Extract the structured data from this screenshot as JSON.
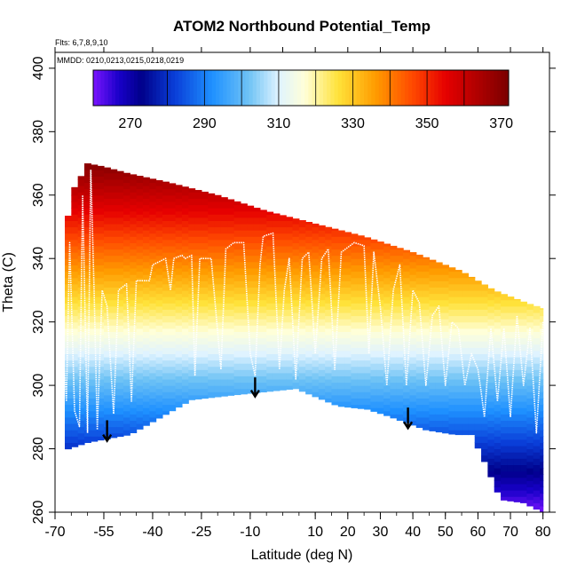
{
  "chart_data": {
    "type": "heatmap",
    "title": "ATOM2 Northbound Potential_Temp",
    "xlabel": "Latitude (deg N)",
    "ylabel": "Theta (C)",
    "flights_note": "Flts: 6,7,8,9,10",
    "dates_note": "MMDD: 0210,0213,0215,0218,0219",
    "xlim": [
      -70,
      82
    ],
    "ylim": [
      260,
      405
    ],
    "x_ticks": [
      -70,
      -55,
      -40,
      -25,
      -10,
      10,
      20,
      30,
      40,
      50,
      60,
      70,
      80
    ],
    "x_ticks_top": [
      -70,
      -55,
      -40,
      -25,
      -10,
      0,
      10,
      20,
      30,
      40,
      50,
      60,
      70,
      80
    ],
    "x_tick_labels": [
      "-70",
      "-55",
      "-40",
      "-25",
      "-10",
      "10",
      "20",
      "30",
      "40",
      "50",
      "60",
      "70",
      "80"
    ],
    "y_ticks": [
      260,
      280,
      300,
      320,
      340,
      360,
      380,
      400
    ],
    "y_tick_labels": [
      "260",
      "280",
      "300",
      "320",
      "340",
      "360",
      "380",
      "400"
    ],
    "colorbar": {
      "min": 260,
      "max": 372,
      "tick_values": [
        270,
        290,
        310,
        330,
        350,
        370
      ],
      "tick_labels": [
        "270",
        "290",
        "310",
        "330",
        "350",
        "370"
      ],
      "stops": [
        {
          "v": 260,
          "color": "#7a14ff"
        },
        {
          "v": 267,
          "color": "#1800c8"
        },
        {
          "v": 273,
          "color": "#00008a"
        },
        {
          "v": 282,
          "color": "#0a3ed8"
        },
        {
          "v": 292,
          "color": "#1e90ff"
        },
        {
          "v": 302,
          "color": "#6fc3f5"
        },
        {
          "v": 310,
          "color": "#dff3ff"
        },
        {
          "v": 317,
          "color": "#ffffd8"
        },
        {
          "v": 326,
          "color": "#ffe23a"
        },
        {
          "v": 336,
          "color": "#ff9c00"
        },
        {
          "v": 346,
          "color": "#ff4a00"
        },
        {
          "v": 355,
          "color": "#e60000"
        },
        {
          "v": 372,
          "color": "#7a0000"
        }
      ]
    },
    "theta_bottom_profile": [
      {
        "lat": -68,
        "theta": 277
      },
      {
        "lat": -66,
        "theta": 280
      },
      {
        "lat": -60,
        "theta": 282
      },
      {
        "lat": -55,
        "theta": 283
      },
      {
        "lat": -47,
        "theta": 284.5
      },
      {
        "lat": -28,
        "theta": 295.5
      },
      {
        "lat": -15,
        "theta": 297
      },
      {
        "lat": 4,
        "theta": 299
      },
      {
        "lat": 17,
        "theta": 293.5
      },
      {
        "lat": 26,
        "theta": 292.5
      },
      {
        "lat": 32,
        "theta": 290.5
      },
      {
        "lat": 44,
        "theta": 286
      },
      {
        "lat": 53,
        "theta": 284.5
      },
      {
        "lat": 58,
        "theta": 284.5
      },
      {
        "lat": 62,
        "theta": 276
      },
      {
        "lat": 67,
        "theta": 264
      },
      {
        "lat": 74,
        "theta": 263
      },
      {
        "lat": 80,
        "theta": 260
      }
    ],
    "theta_top_profile": [
      {
        "lat": -67,
        "theta": 346
      },
      {
        "lat": -65,
        "theta": 361
      },
      {
        "lat": -63,
        "theta": 364
      },
      {
        "lat": -60,
        "theta": 370
      },
      {
        "lat": -55,
        "theta": 369
      },
      {
        "lat": -48,
        "theta": 367
      },
      {
        "lat": -35,
        "theta": 364
      },
      {
        "lat": -20,
        "theta": 360
      },
      {
        "lat": -5,
        "theta": 355
      },
      {
        "lat": 10,
        "theta": 351
      },
      {
        "lat": 25,
        "theta": 347
      },
      {
        "lat": 40,
        "theta": 342
      },
      {
        "lat": 55,
        "theta": 336
      },
      {
        "lat": 65,
        "theta": 330
      },
      {
        "lat": 75,
        "theta": 326
      },
      {
        "lat": 81,
        "theta": 324
      }
    ],
    "flight_track": [
      {
        "lat": -68,
        "theta": 320
      },
      {
        "lat": -66.5,
        "theta": 295
      },
      {
        "lat": -65.5,
        "theta": 345
      },
      {
        "lat": -64,
        "theta": 292
      },
      {
        "lat": -62.5,
        "theta": 287
      },
      {
        "lat": -61.5,
        "theta": 360
      },
      {
        "lat": -60,
        "theta": 285
      },
      {
        "lat": -59,
        "theta": 368
      },
      {
        "lat": -58,
        "theta": 330
      },
      {
        "lat": -57,
        "theta": 286
      },
      {
        "lat": -55.5,
        "theta": 330
      },
      {
        "lat": -54,
        "theta": 325
      },
      {
        "lat": -52,
        "theta": 291
      },
      {
        "lat": -50.5,
        "theta": 330
      },
      {
        "lat": -48,
        "theta": 332
      },
      {
        "lat": -46.5,
        "theta": 295
      },
      {
        "lat": -45,
        "theta": 333
      },
      {
        "lat": -41,
        "theta": 333
      },
      {
        "lat": -40,
        "theta": 338
      },
      {
        "lat": -36,
        "theta": 340
      },
      {
        "lat": -34.5,
        "theta": 330
      },
      {
        "lat": -33.5,
        "theta": 340
      },
      {
        "lat": -31,
        "theta": 341
      },
      {
        "lat": -30,
        "theta": 340
      },
      {
        "lat": -28,
        "theta": 341
      },
      {
        "lat": -27,
        "theta": 303
      },
      {
        "lat": -25.5,
        "theta": 340
      },
      {
        "lat": -22,
        "theta": 340
      },
      {
        "lat": -19,
        "theta": 305
      },
      {
        "lat": -17.5,
        "theta": 343
      },
      {
        "lat": -15,
        "theta": 345
      },
      {
        "lat": -12,
        "theta": 345
      },
      {
        "lat": -10,
        "theta": 310
      },
      {
        "lat": -8.5,
        "theta": 303
      },
      {
        "lat": -7,
        "theta": 338
      },
      {
        "lat": -6,
        "theta": 347
      },
      {
        "lat": -3,
        "theta": 348
      },
      {
        "lat": -1,
        "theta": 305
      },
      {
        "lat": 0.5,
        "theta": 330
      },
      {
        "lat": 2,
        "theta": 340
      },
      {
        "lat": 4,
        "theta": 302
      },
      {
        "lat": 6,
        "theta": 340
      },
      {
        "lat": 8,
        "theta": 342
      },
      {
        "lat": 10,
        "theta": 310
      },
      {
        "lat": 12,
        "theta": 340
      },
      {
        "lat": 14,
        "theta": 343
      },
      {
        "lat": 16,
        "theta": 305
      },
      {
        "lat": 18,
        "theta": 342
      },
      {
        "lat": 22,
        "theta": 345
      },
      {
        "lat": 25,
        "theta": 344
      },
      {
        "lat": 26.5,
        "theta": 310
      },
      {
        "lat": 28,
        "theta": 342
      },
      {
        "lat": 30,
        "theta": 325
      },
      {
        "lat": 32,
        "theta": 300
      },
      {
        "lat": 34,
        "theta": 330
      },
      {
        "lat": 36,
        "theta": 338
      },
      {
        "lat": 38,
        "theta": 300
      },
      {
        "lat": 40,
        "theta": 330
      },
      {
        "lat": 42,
        "theta": 326
      },
      {
        "lat": 44,
        "theta": 300
      },
      {
        "lat": 46,
        "theta": 322
      },
      {
        "lat": 48,
        "theta": 325
      },
      {
        "lat": 50,
        "theta": 300
      },
      {
        "lat": 52,
        "theta": 320
      },
      {
        "lat": 54,
        "theta": 318
      },
      {
        "lat": 56,
        "theta": 300
      },
      {
        "lat": 58,
        "theta": 310
      },
      {
        "lat": 60,
        "theta": 305
      },
      {
        "lat": 61,
        "theta": 298
      },
      {
        "lat": 62,
        "theta": 290
      },
      {
        "lat": 64,
        "theta": 318
      },
      {
        "lat": 66,
        "theta": 295
      },
      {
        "lat": 68,
        "theta": 318
      },
      {
        "lat": 70,
        "theta": 290
      },
      {
        "lat": 72,
        "theta": 322
      },
      {
        "lat": 74,
        "theta": 300
      },
      {
        "lat": 76,
        "theta": 318
      },
      {
        "lat": 78,
        "theta": 285
      },
      {
        "lat": 80,
        "theta": 320
      }
    ],
    "arrows": [
      {
        "lat": -54,
        "theta_start": 289,
        "theta_end": 282.5
      },
      {
        "lat": -8.5,
        "theta_start": 302.5,
        "theta_end": 296.5
      },
      {
        "lat": 38.5,
        "theta_start": 293,
        "theta_end": 286.5
      }
    ]
  }
}
